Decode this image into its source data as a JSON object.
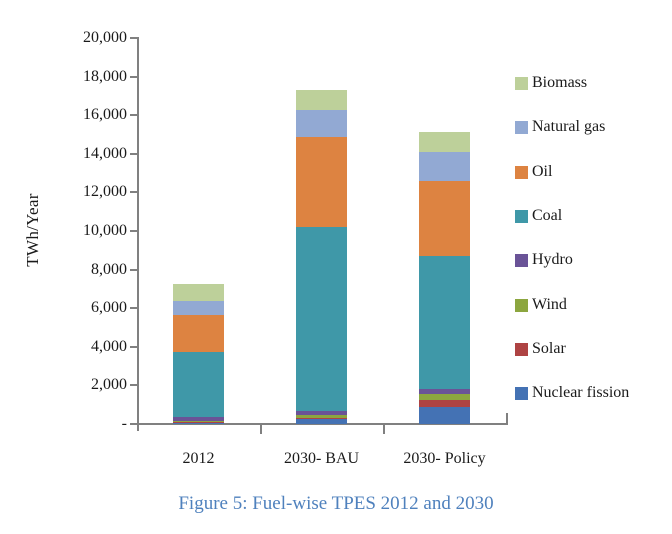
{
  "figure": {
    "caption": "Figure 5: Fuel-wise TPES 2012 and 2030"
  },
  "chart_data": {
    "type": "bar",
    "stacked": true,
    "title": "",
    "xlabel": "",
    "ylabel": "TWh/Year",
    "ylim": [
      0,
      20000
    ],
    "ytick_step": 2000,
    "ytick_labels": [
      "-",
      "2,000",
      "4,000",
      "6,000",
      "8,000",
      "10,000",
      "12,000",
      "14,000",
      "16,000",
      "18,000",
      "20,000"
    ],
    "grid": false,
    "categories": [
      "2012",
      "2030- BAU",
      "2030- Policy"
    ],
    "series": [
      {
        "name": "Nuclear fission",
        "color": "#4472B4",
        "values": [
          100,
          250,
          900
        ]
      },
      {
        "name": "Solar",
        "color": "#AE4343",
        "values": [
          10,
          50,
          350
        ]
      },
      {
        "name": "Wind",
        "color": "#8CA63F",
        "values": [
          40,
          150,
          300
        ]
      },
      {
        "name": "Hydro",
        "color": "#6A5397",
        "values": [
          210,
          250,
          250
        ]
      },
      {
        "name": "Coal",
        "color": "#3F98A8",
        "values": [
          3390,
          9500,
          6900
        ]
      },
      {
        "name": "Oil",
        "color": "#DD8341",
        "values": [
          1900,
          4650,
          3900
        ]
      },
      {
        "name": "Natural gas",
        "color": "#92A9D3",
        "values": [
          700,
          1400,
          1500
        ]
      },
      {
        "name": "Biomass",
        "color": "#BDD09A",
        "values": [
          900,
          1050,
          1050
        ]
      }
    ],
    "stack_order_bottom_to_top": [
      "Nuclear fission",
      "Solar",
      "Wind",
      "Hydro",
      "Coal",
      "Oil",
      "Natural gas",
      "Biomass"
    ],
    "totals": {
      "2012": 7250,
      "2030- BAU": 17300,
      "2030- Policy": 15150
    },
    "legend": {
      "position": "right",
      "order_top_to_bottom": [
        "Biomass",
        "Natural gas",
        "Oil",
        "Coal",
        "Hydro",
        "Wind",
        "Solar",
        "Nuclear fission"
      ]
    },
    "axis_color": "#808080",
    "caption_color": "#4F81BD"
  }
}
